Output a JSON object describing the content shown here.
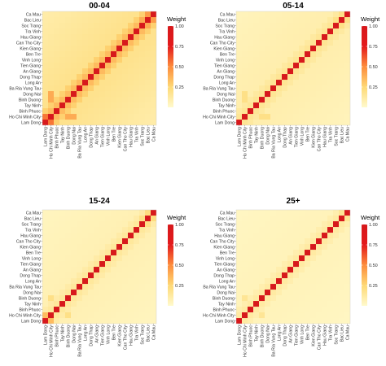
{
  "chart_data": {
    "type": "heatmap",
    "provinces": [
      "Lam Dong",
      "Ho Chi Minh City",
      "Binh Phuoc",
      "Tay Ninh",
      "Binh Duong",
      "Dong Nai",
      "Ba Ria Vung Tau",
      "Long An",
      "Dong Thap",
      "An Giang",
      "Tien Giang",
      "Vinh Long",
      "Ben Tre",
      "Kien Giang",
      "Can Tho City",
      "Hau Giang",
      "Tra Vinh",
      "Soc Trang",
      "Bac Lieu",
      "Ca Mau"
    ],
    "x_tick_labels": [
      "Lam Dong",
      "Ho Chi Minh City",
      "Binh Phuoc",
      "Tay Ninh",
      "Binh Duong",
      "Dong Nai",
      "Ba Ria Vung Tau",
      "Long An",
      "Dong Thap",
      "An Giang",
      "Tien Giang",
      "Vinh Long",
      "Ben Tre",
      "Kien Giang",
      "Can Tho City",
      "Hau Giang",
      "Tra Vinh",
      "Soc Trang",
      "Bac Lieu",
      "Ca Mau"
    ],
    "y_tick_labels": [
      "Lam Dong",
      "Ho Chi Minh City",
      "Binh Phuoc",
      "Tay Ninh",
      "Binh Duong",
      "Dong Nai",
      "Ba Ria Vung Tau",
      "Long An",
      "Dong Thap",
      "An Giang",
      "Tien Giang",
      "Vinh Long",
      "Ben Tre",
      "Kien Giang",
      "Can Tho City",
      "Hau Giang",
      "Tra Vinh",
      "Soc Trang",
      "Bac Lieu",
      "Ca Mau"
    ],
    "colorbar": {
      "title": "Weight",
      "range": [
        0,
        1
      ],
      "ticks": [
        "0.25",
        "0.50",
        "0.75",
        "1.00"
      ],
      "tick_values": [
        0.25,
        0.5,
        0.75,
        1.0
      ],
      "colors": [
        "#fffacd",
        "#fed976",
        "#fd8d3c",
        "#e31a1c",
        "#d7191c"
      ]
    },
    "panels": [
      {
        "title": "00-04",
        "diagonal": 1.0,
        "offdiag_base": 0.2,
        "near_diag": 0.35,
        "strong": [
          [
            0,
            1,
            0.55
          ],
          [
            1,
            4,
            0.4
          ],
          [
            1,
            5,
            0.4
          ],
          [
            1,
            2,
            0.35
          ],
          [
            4,
            5,
            0.35
          ],
          [
            12,
            13,
            0.35
          ],
          [
            15,
            16,
            0.35
          ],
          [
            16,
            17,
            0.35
          ],
          [
            17,
            18,
            0.4
          ],
          [
            18,
            19,
            0.45
          ],
          [
            14,
            15,
            0.35
          ],
          [
            7,
            8,
            0.35
          ]
        ]
      },
      {
        "title": "05-14",
        "diagonal": 1.0,
        "offdiag_base": 0.1,
        "near_diag": 0.16,
        "strong": [
          [
            1,
            4,
            0.2
          ],
          [
            1,
            5,
            0.2
          ],
          [
            17,
            18,
            0.2
          ],
          [
            18,
            19,
            0.2
          ]
        ]
      },
      {
        "title": "15-24",
        "diagonal": 1.0,
        "offdiag_base": 0.08,
        "near_diag": 0.14,
        "strong": [
          [
            0,
            1,
            0.35
          ],
          [
            1,
            4,
            0.2
          ],
          [
            18,
            19,
            0.22
          ],
          [
            17,
            18,
            0.2
          ]
        ]
      },
      {
        "title": "25+",
        "diagonal": 1.0,
        "offdiag_base": 0.06,
        "near_diag": 0.12,
        "strong": [
          [
            1,
            4,
            0.16
          ],
          [
            18,
            19,
            0.16
          ]
        ]
      }
    ]
  }
}
